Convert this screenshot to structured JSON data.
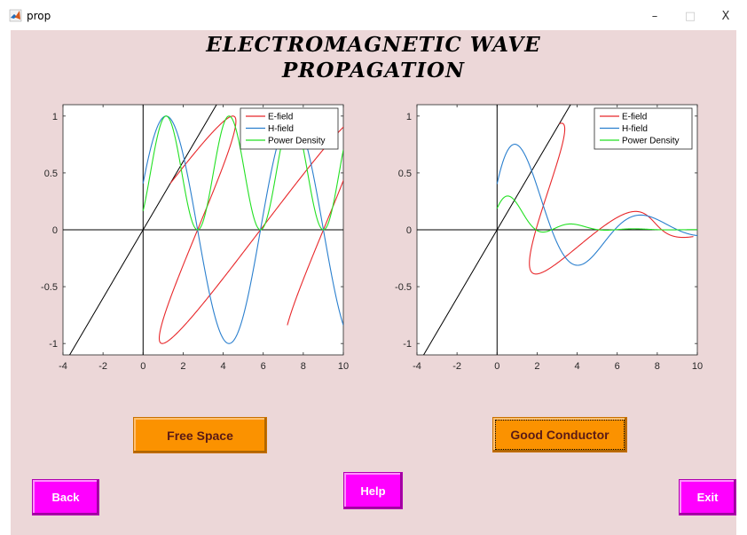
{
  "window": {
    "title": "prop",
    "minimize_glyph": "–",
    "maximize_glyph": "□",
    "close_glyph": "X",
    "icon": "matlab-icon"
  },
  "figure": {
    "heading_line1": "ELECTROMAGNETIC WAVE",
    "heading_line2": "PROPAGATION",
    "background": "#ecd7d8"
  },
  "buttons": {
    "free_space": "Free Space",
    "good_conductor": "Good Conductor",
    "back": "Back",
    "help": "Help",
    "exit": "Exit"
  },
  "colors": {
    "e_field": "#e8282b",
    "h_field": "#2a7fce",
    "power_density": "#22e022",
    "orange_button": "#fb9200",
    "magenta_button": "#ff00ff"
  },
  "chart_data": [
    {
      "type": "line",
      "name_id": "free-space",
      "xlim": [
        -4,
        10
      ],
      "ylim": [
        -1.1,
        1.1
      ],
      "xticks": [
        -4,
        -2,
        0,
        2,
        4,
        6,
        8,
        10
      ],
      "yticks": [
        -1,
        -0.5,
        0,
        0.5,
        1
      ],
      "xtick_labels": [
        "-4",
        "-2",
        "0",
        "2",
        "4",
        "6",
        "8",
        "10"
      ],
      "ytick_labels": [
        "-1",
        "-0.5",
        "0",
        "0.5",
        "1"
      ],
      "legend": {
        "position": "top-right",
        "entries": [
          "E-field",
          "H-field",
          "Power Density"
        ]
      },
      "grid": false,
      "medium": "lossless",
      "wavenumber": 1,
      "phase": 0.42,
      "diagonal_slope": 0.3,
      "x_max": 10
    },
    {
      "type": "line",
      "name_id": "good-conductor",
      "xlim": [
        -4,
        10
      ],
      "ylim": [
        -1.1,
        1.1
      ],
      "xticks": [
        -4,
        -2,
        0,
        2,
        4,
        6,
        8,
        10
      ],
      "yticks": [
        -1,
        -0.5,
        0,
        0.5,
        1
      ],
      "xtick_labels": [
        "-4",
        "-2",
        "0",
        "2",
        "4",
        "6",
        "8",
        "10"
      ],
      "ytick_labels": [
        "-1",
        "-0.5",
        "0",
        "0.5",
        "1"
      ],
      "legend": {
        "position": "top-right",
        "entries": [
          "E-field",
          "H-field",
          "Power Density"
        ]
      },
      "grid": false,
      "medium": "lossy",
      "wavenumber": 1,
      "attenuation": 0.28,
      "phase": 1.2,
      "diagonal_slope": 0.3,
      "x_max": 10
    }
  ]
}
